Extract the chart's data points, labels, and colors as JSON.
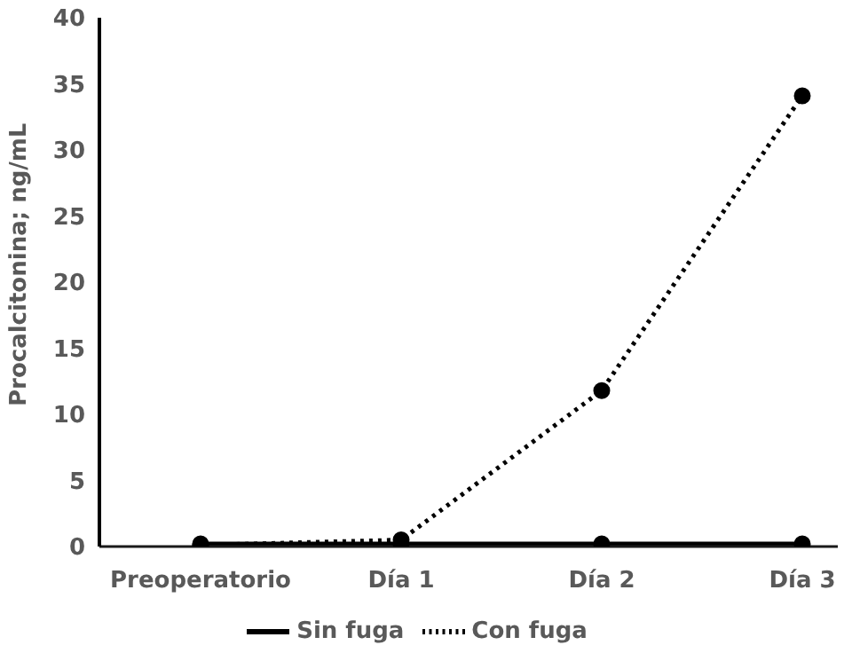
{
  "chart_data": {
    "type": "line",
    "categories": [
      "Preoperatorio",
      "Día 1",
      "Día 2",
      "Día 3"
    ],
    "ylabel": "Procalcitonina; ng/mL",
    "ylim": [
      0,
      40
    ],
    "yticks": [
      0,
      5,
      10,
      15,
      20,
      25,
      30,
      35,
      40
    ],
    "grid": false,
    "legend": "bottom",
    "marker": "circle",
    "series": [
      {
        "name": "Sin fuga",
        "color": "#000000",
        "line_style": "solid",
        "values": [
          0.2,
          0.2,
          0.2,
          0.2
        ]
      },
      {
        "name": "Con fuga",
        "color": "#000000",
        "line_style": "dotted",
        "values": [
          0.1,
          0.5,
          11.8,
          34.1
        ]
      }
    ]
  }
}
